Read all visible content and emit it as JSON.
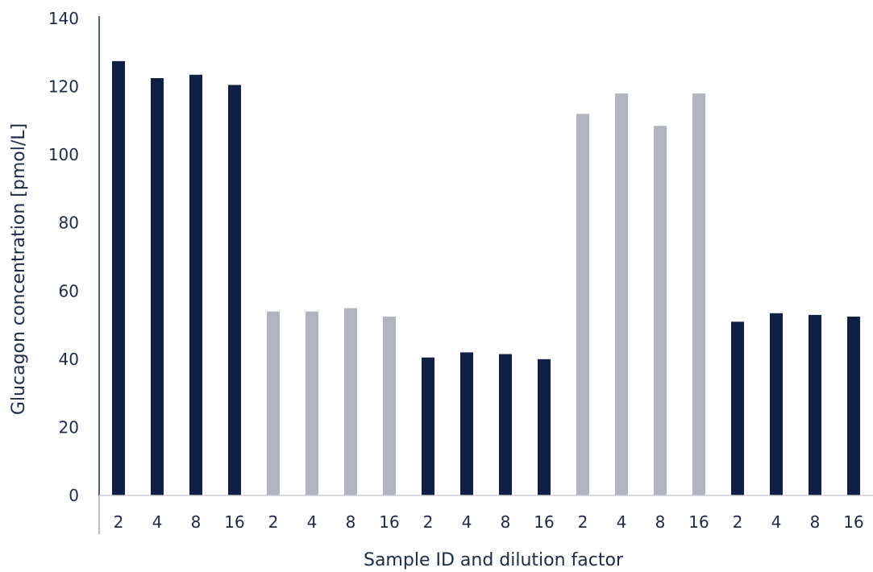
{
  "chart_data": {
    "type": "bar",
    "title": "",
    "xlabel": "Sample ID and dilution factor",
    "ylabel": "Glucagon concentration [pmol/L]",
    "ylim": [
      0,
      140
    ],
    "yticks": [
      0,
      20,
      40,
      60,
      80,
      100,
      120,
      140
    ],
    "grid": false,
    "legend": "none",
    "categories": [
      "2",
      "4",
      "8",
      "16",
      "2",
      "4",
      "8",
      "16",
      "2",
      "4",
      "8",
      "16",
      "2",
      "4",
      "8",
      "16",
      "2",
      "4",
      "8",
      "16"
    ],
    "values": [
      127.5,
      122.5,
      123.5,
      120.5,
      54.0,
      54.0,
      55.0,
      52.5,
      40.5,
      42.0,
      41.5,
      40.0,
      112.0,
      118.0,
      108.5,
      118.0,
      51.0,
      53.5,
      53.0,
      52.5
    ],
    "groups": [
      {
        "color": "#0f1f45"
      },
      {
        "color": "#b0b4bc"
      },
      {
        "color": "#0f1f45"
      },
      {
        "color": "#b0b4bc"
      },
      {
        "color": "#0f1f45"
      }
    ],
    "bars_per_group": 4
  }
}
